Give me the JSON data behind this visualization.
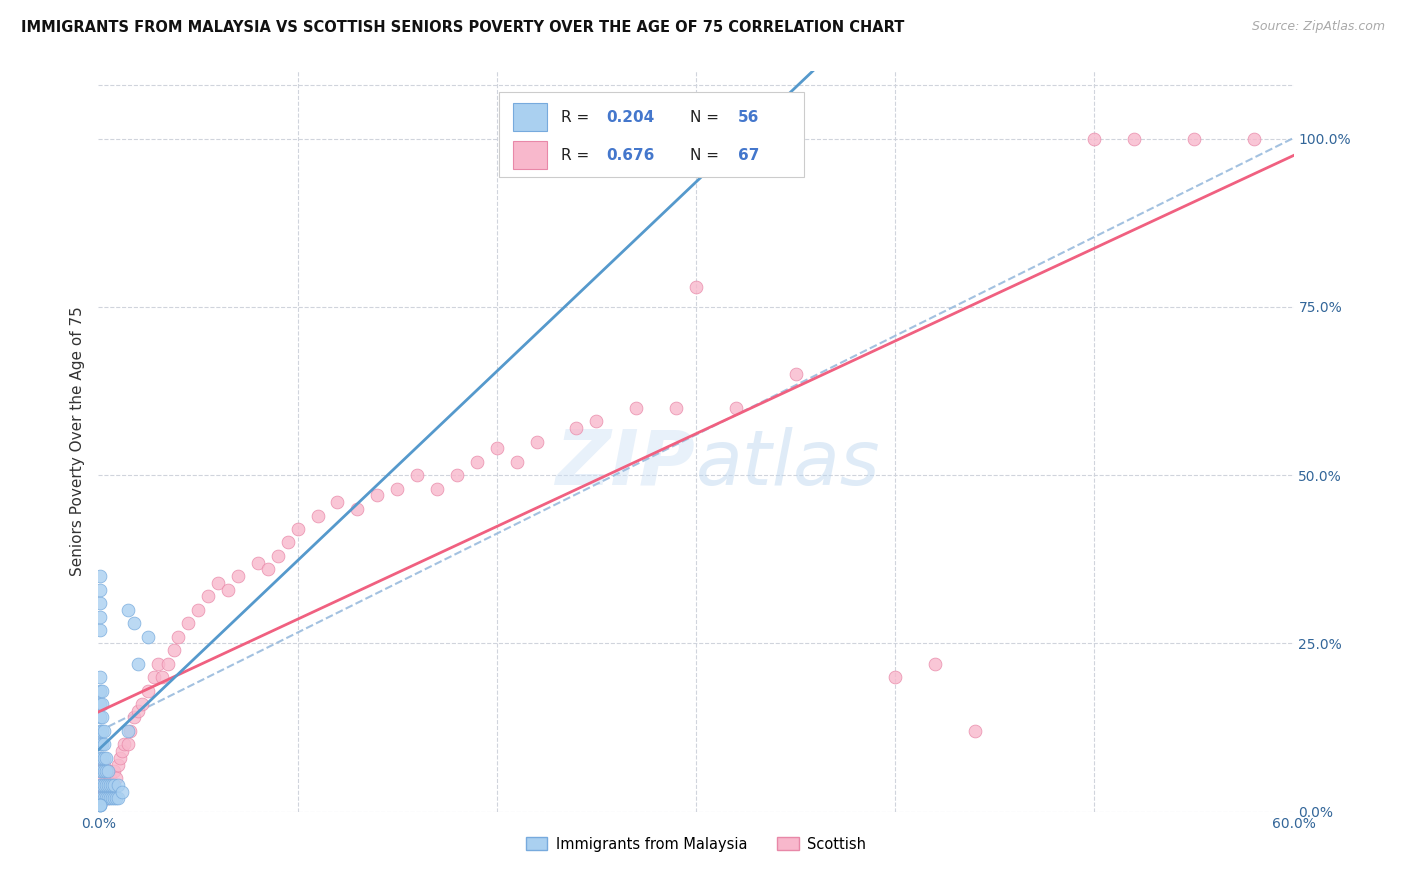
{
  "title": "IMMIGRANTS FROM MALAYSIA VS SCOTTISH SENIORS POVERTY OVER THE AGE OF 75 CORRELATION CHART",
  "source": "Source: ZipAtlas.com",
  "ylabel": "Seniors Poverty Over the Age of 75",
  "xlim": [
    0.0,
    0.6
  ],
  "ylim": [
    0.0,
    1.1
  ],
  "color_malaysia": "#aad0f0",
  "color_malaysia_edge": "#77aadd",
  "color_scottish": "#f8b8cc",
  "color_scottish_edge": "#e888a8",
  "color_malaysia_line": "#5599cc",
  "color_scottish_line": "#f06080",
  "color_dashed": "#99bbdd",
  "background": "#ffffff",
  "grid_color": "#d0d4dc",
  "malaysia_x": [
    0.001,
    0.001,
    0.001,
    0.001,
    0.001,
    0.001,
    0.001,
    0.001,
    0.001,
    0.001,
    0.002,
    0.002,
    0.002,
    0.002,
    0.002,
    0.002,
    0.002,
    0.002,
    0.002,
    0.003,
    0.003,
    0.003,
    0.003,
    0.003,
    0.003,
    0.004,
    0.004,
    0.004,
    0.004,
    0.005,
    0.005,
    0.005,
    0.006,
    0.006,
    0.007,
    0.007,
    0.008,
    0.008,
    0.009,
    0.01,
    0.01,
    0.012,
    0.015,
    0.015,
    0.018,
    0.02,
    0.025,
    0.001,
    0.001,
    0.001,
    0.001,
    0.001,
    0.001,
    0.001,
    0.001
  ],
  "malaysia_y": [
    0.02,
    0.04,
    0.06,
    0.08,
    0.1,
    0.12,
    0.14,
    0.16,
    0.18,
    0.2,
    0.02,
    0.04,
    0.06,
    0.08,
    0.1,
    0.12,
    0.14,
    0.16,
    0.18,
    0.02,
    0.04,
    0.06,
    0.08,
    0.1,
    0.12,
    0.02,
    0.04,
    0.06,
    0.08,
    0.02,
    0.04,
    0.06,
    0.02,
    0.04,
    0.02,
    0.04,
    0.02,
    0.04,
    0.02,
    0.02,
    0.04,
    0.03,
    0.12,
    0.3,
    0.28,
    0.22,
    0.26,
    0.27,
    0.29,
    0.31,
    0.33,
    0.35,
    0.01,
    0.01,
    0.01
  ],
  "scottish_x": [
    0.001,
    0.001,
    0.001,
    0.002,
    0.002,
    0.003,
    0.003,
    0.004,
    0.005,
    0.005,
    0.006,
    0.007,
    0.008,
    0.009,
    0.01,
    0.011,
    0.012,
    0.013,
    0.015,
    0.016,
    0.018,
    0.02,
    0.022,
    0.025,
    0.028,
    0.03,
    0.032,
    0.035,
    0.038,
    0.04,
    0.045,
    0.05,
    0.055,
    0.06,
    0.065,
    0.07,
    0.08,
    0.085,
    0.09,
    0.095,
    0.1,
    0.11,
    0.12,
    0.13,
    0.14,
    0.15,
    0.16,
    0.17,
    0.18,
    0.19,
    0.2,
    0.21,
    0.22,
    0.24,
    0.25,
    0.27,
    0.29,
    0.3,
    0.32,
    0.35,
    0.4,
    0.42,
    0.44,
    0.5,
    0.52,
    0.55,
    0.58
  ],
  "scottish_y": [
    0.02,
    0.04,
    0.06,
    0.02,
    0.05,
    0.03,
    0.07,
    0.04,
    0.02,
    0.06,
    0.05,
    0.04,
    0.06,
    0.05,
    0.07,
    0.08,
    0.09,
    0.1,
    0.1,
    0.12,
    0.14,
    0.15,
    0.16,
    0.18,
    0.2,
    0.22,
    0.2,
    0.22,
    0.24,
    0.26,
    0.28,
    0.3,
    0.32,
    0.34,
    0.33,
    0.35,
    0.37,
    0.36,
    0.38,
    0.4,
    0.42,
    0.44,
    0.46,
    0.45,
    0.47,
    0.48,
    0.5,
    0.48,
    0.5,
    0.52,
    0.54,
    0.52,
    0.55,
    0.57,
    0.58,
    0.6,
    0.6,
    0.78,
    0.6,
    0.65,
    0.2,
    0.22,
    0.12,
    1.0,
    1.0,
    1.0,
    1.0
  ]
}
